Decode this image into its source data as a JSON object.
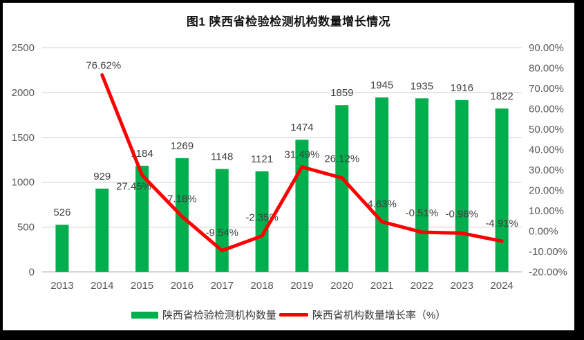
{
  "chart_data": {
    "type": "bar+line combo",
    "title": "图1 陕西省检验检测机构数量增长情况",
    "categories": [
      "2013",
      "2014",
      "2015",
      "2016",
      "2017",
      "2018",
      "2019",
      "2020",
      "2021",
      "2022",
      "2023",
      "2024"
    ],
    "series": [
      {
        "name": "陕西省检验检测机构数量",
        "type": "bar",
        "axis": "left",
        "color": "#00AE4E",
        "values": [
          526,
          929,
          1184,
          1269,
          1148,
          1121,
          1474,
          1859,
          1945,
          1935,
          1916,
          1822
        ],
        "labels": [
          "526",
          "929",
          "1184",
          "1269",
          "1148",
          "1121",
          "1474",
          "1859",
          "1945",
          "1935",
          "1916",
          "1822"
        ]
      },
      {
        "name": "陕西省机构数量增长率（%）",
        "type": "line",
        "axis": "right",
        "color": "#FF0000",
        "values": [
          null,
          76.62,
          27.45,
          7.18,
          -9.54,
          -2.35,
          31.49,
          26.12,
          4.63,
          -0.51,
          -0.98,
          -4.91
        ],
        "labels": [
          "",
          "76.62%",
          "27.45%",
          "7.18%",
          "-9.54%",
          "-2.35%",
          "31.49%",
          "26.12%",
          "4.63%",
          "-0.51%",
          "-0.98%",
          "-4.91%"
        ]
      }
    ],
    "left_axis": {
      "min": 0,
      "max": 2500,
      "step": 500,
      "ticks": [
        "0",
        "500",
        "1000",
        "1500",
        "2000",
        "2500"
      ]
    },
    "right_axis": {
      "min": -20,
      "max": 90,
      "step": 10,
      "ticks": [
        "-20.00%",
        "-10.00%",
        "0.00%",
        "10.00%",
        "20.00%",
        "30.00%",
        "40.00%",
        "50.00%",
        "60.00%",
        "70.00%",
        "80.00%",
        "90.00%"
      ]
    },
    "grid": true,
    "legend_position": "bottom",
    "colors": {
      "grid": "#D9D9D9",
      "axis_line": "#A6A6A6",
      "tick_text": "#595959",
      "data_label_text": "#404040"
    }
  }
}
